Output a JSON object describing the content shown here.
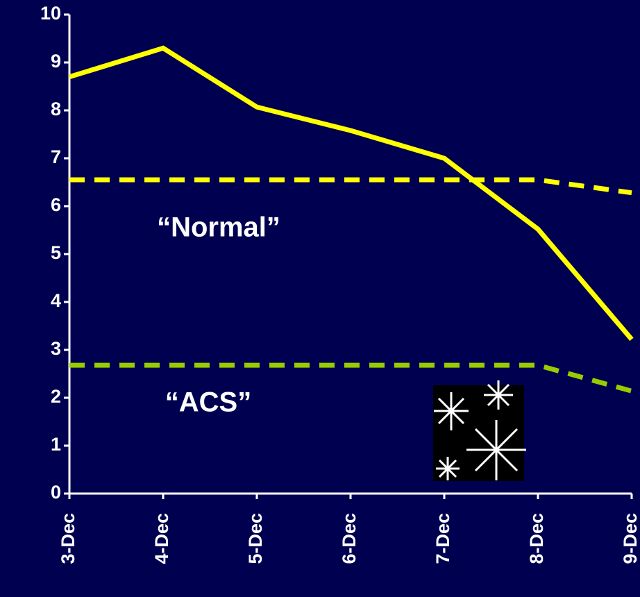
{
  "chart_data": {
    "type": "line",
    "categories": [
      "3-Dec",
      "4-Dec",
      "5-Dec",
      "6-Dec",
      "7-Dec",
      "8-Dec",
      "9-Dec"
    ],
    "series": [
      {
        "color": "#ffff00",
        "dash": false,
        "values": [
          8.7,
          9.3,
          8.07,
          7.58,
          7.0,
          5.52,
          3.22
        ]
      },
      {
        "name": "“Normal”",
        "color": "#ffff00",
        "dash": true,
        "values": [
          6.55,
          6.55,
          6.55,
          6.55,
          6.55,
          6.55,
          6.28
        ]
      },
      {
        "name": "“ACS”",
        "color": "#99cc00",
        "dash": true,
        "values": [
          2.68,
          2.68,
          2.68,
          2.68,
          2.68,
          2.68,
          2.14
        ]
      }
    ],
    "ylim": [
      0,
      10
    ],
    "yticks": [
      0,
      1,
      2,
      3,
      4,
      5,
      6,
      7,
      8,
      9,
      10
    ]
  }
}
